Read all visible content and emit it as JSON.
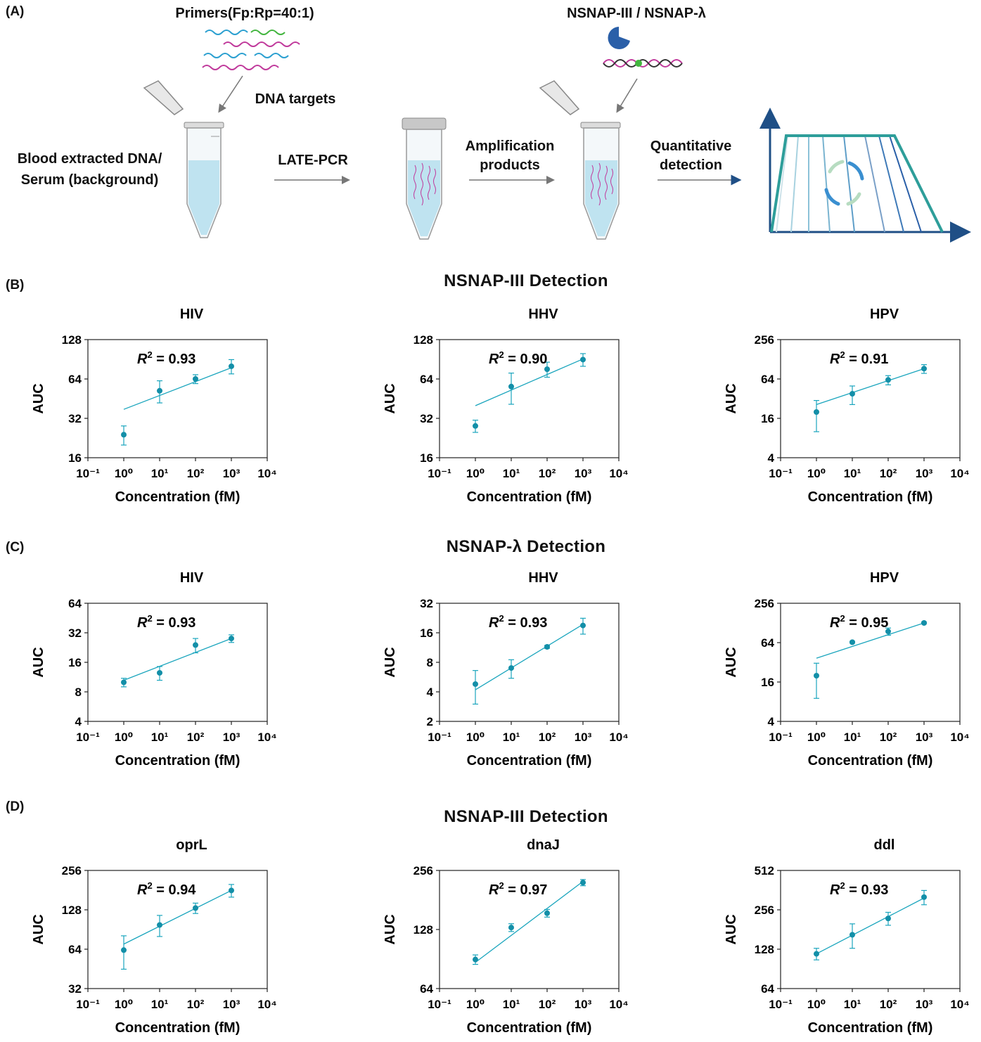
{
  "panels": {
    "a": "(A)",
    "b": "(B)",
    "c": "(C)",
    "d": "(D)"
  },
  "schematic": {
    "primers": "Primers(Fp:Rp=40:1)",
    "dna_targets": "DNA targets",
    "blood": "Blood extracted DNA/",
    "serum": "Serum (background)",
    "late_pcr": "LATE-PCR",
    "amp1": "Amplification",
    "amp2": "products",
    "nsnap": "NSNAP-III / NSNAP-λ",
    "quant1": "Quantitative",
    "quant2": "detection"
  },
  "section_titles": {
    "b": "NSNAP-III  Detection",
    "c": "NSNAP-λ  Detection",
    "d": "NSNAP-III  Detection"
  },
  "colors": {
    "teal": "#1aa5bd",
    "pink": "#c0399b",
    "blue": "#2a7fc9",
    "green": "#43b53f",
    "navy": "#1f4f86",
    "tube": "#bfe3f0"
  },
  "chart_data": [
    {
      "id": "b1",
      "type": "scatter",
      "title": "HIV",
      "xlabel": "Concentration (fM)",
      "ylabel": "AUC",
      "x": [
        1,
        10,
        100,
        1000
      ],
      "y": [
        24,
        52,
        64,
        80
      ],
      "err": [
        4,
        10,
        5,
        10
      ],
      "fit": [
        37.5,
        78
      ],
      "r2": "0.93",
      "yscale": "log2",
      "ylim": [
        16,
        128
      ],
      "yticks": [
        "16",
        "32",
        "64",
        "128"
      ],
      "xlim": [
        0.1,
        10000
      ],
      "xticks": [
        "0.1",
        "1",
        "10",
        "100",
        "1000",
        "10000"
      ]
    },
    {
      "id": "b2",
      "type": "scatter",
      "title": "HHV",
      "xlabel": "Concentration (fM)",
      "ylabel": "AUC",
      "x": [
        1,
        10,
        100,
        1000
      ],
      "y": [
        28,
        56,
        76,
        90
      ],
      "err": [
        3,
        15,
        10,
        10
      ],
      "fit": [
        40,
        91
      ],
      "r2": "0.90",
      "yscale": "log2",
      "ylim": [
        16,
        128
      ],
      "yticks": [
        "16",
        "32",
        "64",
        "128"
      ],
      "xlim": [
        0.1,
        10000
      ],
      "xticks": [
        "0.1",
        "1",
        "10",
        "100",
        "1000",
        "10000"
      ]
    },
    {
      "id": "b3",
      "type": "scatter",
      "title": "HPV",
      "xlabel": "Concentration (fM)",
      "ylabel": "AUC",
      "x": [
        1,
        10,
        100,
        1000
      ],
      "y": [
        20,
        38,
        62,
        92
      ],
      "err": [
        10,
        12,
        10,
        14
      ],
      "fit": [
        26,
        92
      ],
      "r2": "0.91",
      "yscale": "log2",
      "ylim": [
        4,
        256
      ],
      "yticks": [
        "4",
        "16",
        "64",
        "256"
      ],
      "xlim": [
        0.1,
        10000
      ],
      "xticks": [
        "0.1",
        "1",
        "10",
        "100",
        "1000",
        "10000"
      ]
    },
    {
      "id": "c1",
      "type": "scatter",
      "title": "HIV",
      "xlabel": "Concentration (fM)",
      "ylabel": "AUC",
      "x": [
        1,
        10,
        100,
        1000
      ],
      "y": [
        10,
        12.5,
        24,
        28
      ],
      "err": [
        1,
        2,
        4,
        2.5
      ],
      "fit": [
        10.5,
        28
      ],
      "r2": "0.93",
      "yscale": "log2",
      "ylim": [
        4,
        64
      ],
      "yticks": [
        "4",
        "8",
        "16",
        "32",
        "64"
      ],
      "xlim": [
        0.1,
        10000
      ],
      "xticks": [
        "0.1",
        "1",
        "10",
        "100",
        "1000",
        "10000"
      ]
    },
    {
      "id": "c2",
      "type": "scatter",
      "title": "HHV",
      "xlabel": "Concentration (fM)",
      "ylabel": "AUC",
      "x": [
        1,
        10,
        100,
        1000
      ],
      "y": [
        4.8,
        7,
        11.5,
        19
      ],
      "err": [
        1.8,
        1.5,
        0.4,
        3.5
      ],
      "fit": [
        4.2,
        19.5
      ],
      "r2": "0.93",
      "yscale": "log2",
      "ylim": [
        2,
        32
      ],
      "yticks": [
        "2",
        "4",
        "8",
        "16",
        "32"
      ],
      "xlim": [
        0.1,
        10000
      ],
      "xticks": [
        "0.1",
        "1",
        "10",
        "100",
        "1000",
        "10000"
      ]
    },
    {
      "id": "c3",
      "type": "scatter",
      "title": "HPV",
      "xlabel": "Concentration (fM)",
      "ylabel": "AUC",
      "x": [
        1,
        10,
        100,
        1000
      ],
      "y": [
        20,
        65,
        95,
        128
      ],
      "err": [
        11,
        2,
        12,
        4
      ],
      "fit": [
        37,
        128
      ],
      "r2": "0.95",
      "yscale": "log2",
      "ylim": [
        4,
        256
      ],
      "yticks": [
        "4",
        "16",
        "64",
        "256"
      ],
      "xlim": [
        0.1,
        10000
      ],
      "xticks": [
        "0.1",
        "1",
        "10",
        "100",
        "1000",
        "10000"
      ]
    },
    {
      "id": "d1",
      "type": "scatter",
      "title": "oprL",
      "xlabel": "Concentration (fM)",
      "ylabel": "AUC",
      "x": [
        1,
        10,
        100,
        1000
      ],
      "y": [
        63,
        98,
        132,
        180
      ],
      "err": [
        18,
        18,
        12,
        20
      ],
      "fit": [
        70,
        180
      ],
      "r2": "0.94",
      "yscale": "log2",
      "ylim": [
        32,
        256
      ],
      "yticks": [
        "32",
        "64",
        "128",
        "256"
      ],
      "xlim": [
        0.1,
        10000
      ],
      "xticks": [
        "0.1",
        "1",
        "10",
        "100",
        "1000",
        "10000"
      ]
    },
    {
      "id": "d2",
      "type": "scatter",
      "title": "dnaJ",
      "xlabel": "Concentration (fM)",
      "ylabel": "AUC",
      "x": [
        1,
        10,
        100,
        1000
      ],
      "y": [
        90,
        131,
        155,
        222
      ],
      "err": [
        5,
        6,
        7,
        8
      ],
      "fit": [
        87,
        225
      ],
      "r2": "0.97",
      "yscale": "log2",
      "ylim": [
        64,
        256
      ],
      "yticks": [
        "64",
        "128",
        "256"
      ],
      "xlim": [
        0.1,
        10000
      ],
      "xticks": [
        "0.1",
        "1",
        "10",
        "100",
        "1000",
        "10000"
      ]
    },
    {
      "id": "d3",
      "type": "scatter",
      "title": "ddl",
      "xlabel": "Concentration (fM)",
      "ylabel": "AUC",
      "x": [
        1,
        10,
        100,
        1000
      ],
      "y": [
        118,
        165,
        220,
        320
      ],
      "err": [
        12,
        35,
        25,
        40
      ],
      "fit": [
        118,
        315
      ],
      "r2": "0.93",
      "yscale": "log2",
      "ylim": [
        64,
        512
      ],
      "yticks": [
        "64",
        "128",
        "256",
        "512"
      ],
      "xlim": [
        0.1,
        10000
      ],
      "xticks": [
        "0.1",
        "1",
        "10",
        "100",
        "1000",
        "10000"
      ]
    }
  ]
}
